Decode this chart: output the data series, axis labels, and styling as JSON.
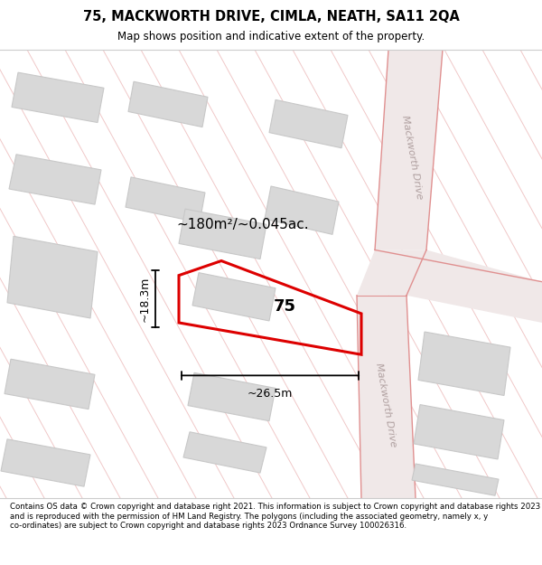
{
  "title": "75, MACKWORTH DRIVE, CIMLA, NEATH, SA11 2QA",
  "subtitle": "Map shows position and indicative extent of the property.",
  "footer": "Contains OS data © Crown copyright and database right 2021. This information is subject to Crown copyright and database rights 2023 and is reproduced with the permission of HM Land Registry. The polygons (including the associated geometry, namely x, y co-ordinates) are subject to Crown copyright and database rights 2023 Ordnance Survey 100026316.",
  "area_label": "~180m²/~0.045ac.",
  "width_label": "~26.5m",
  "height_label": "~18.3m",
  "plot_number": "75",
  "map_bg": "#ffffff",
  "road_fill": "#f0e8e8",
  "road_line": "#e09090",
  "building_fill": "#d8d8d8",
  "building_edge": "#c8c8c8",
  "plot_color": "#dd0000",
  "dim_color": "#000000",
  "diag_line_color": "#f0c8c8",
  "road_label_color": "#b0a0a0",
  "mackworth_drive": "Mackworth Drive"
}
